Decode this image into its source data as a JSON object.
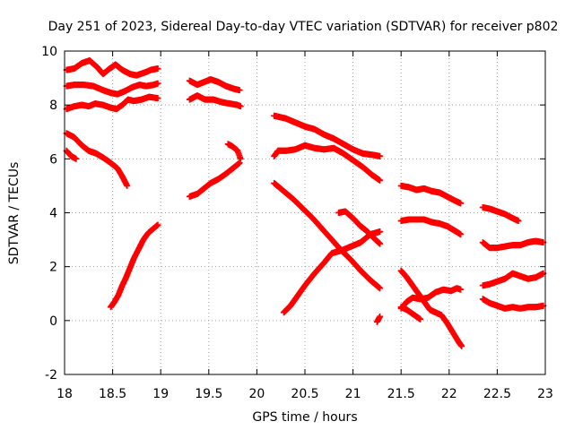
{
  "chart_data": {
    "type": "scatter",
    "title": "Day 251 of 2023, Sidereal Day-to-day VTEC variation (SDTVAR) for receiver p802",
    "xlabel": "GPS time / hours",
    "ylabel": "SDTVAR / TECUs",
    "xlim": [
      18,
      23
    ],
    "ylim": [
      -2,
      10
    ],
    "xticks": [
      18,
      18.5,
      19,
      19.5,
      20,
      20.5,
      21,
      21.5,
      22,
      22.5,
      23
    ],
    "xtick_labels": [
      "18",
      "18.5",
      "19",
      "19.5",
      "20",
      "20.5",
      "21",
      "21.5",
      "22",
      "22.5",
      "23"
    ],
    "yticks": [
      -2,
      0,
      2,
      4,
      6,
      8,
      10
    ],
    "ytick_labels": [
      "-2",
      "0",
      "2",
      "4",
      "6",
      "8",
      "10"
    ],
    "grid": true,
    "marker": "+",
    "series_color": "#ff0000",
    "series": [
      {
        "name": "arc-1",
        "points": [
          [
            18.02,
            9.3
          ],
          [
            18.1,
            9.35
          ],
          [
            18.18,
            9.55
          ],
          [
            18.26,
            9.65
          ],
          [
            18.34,
            9.4
          ],
          [
            18.4,
            9.15
          ],
          [
            18.47,
            9.35
          ],
          [
            18.53,
            9.5
          ],
          [
            18.6,
            9.3
          ],
          [
            18.68,
            9.15
          ],
          [
            18.75,
            9.1
          ],
          [
            18.83,
            9.2
          ],
          [
            18.9,
            9.3
          ],
          [
            18.97,
            9.35
          ]
        ]
      },
      {
        "name": "arc-2",
        "points": [
          [
            18.02,
            8.7
          ],
          [
            18.1,
            8.75
          ],
          [
            18.2,
            8.75
          ],
          [
            18.3,
            8.7
          ],
          [
            18.4,
            8.55
          ],
          [
            18.48,
            8.45
          ],
          [
            18.55,
            8.4
          ],
          [
            18.62,
            8.5
          ],
          [
            18.7,
            8.65
          ],
          [
            18.78,
            8.75
          ],
          [
            18.85,
            8.7
          ],
          [
            18.93,
            8.75
          ],
          [
            18.97,
            8.8
          ]
        ]
      },
      {
        "name": "arc-3",
        "points": [
          [
            18.02,
            7.85
          ],
          [
            18.1,
            7.95
          ],
          [
            18.18,
            8.0
          ],
          [
            18.25,
            7.95
          ],
          [
            18.32,
            8.05
          ],
          [
            18.4,
            8.0
          ],
          [
            18.48,
            7.9
          ],
          [
            18.54,
            7.85
          ],
          [
            18.6,
            8.0
          ],
          [
            18.66,
            8.2
          ],
          [
            18.72,
            8.15
          ],
          [
            18.8,
            8.2
          ],
          [
            18.88,
            8.3
          ],
          [
            18.97,
            8.25
          ]
        ]
      },
      {
        "name": "arc-4",
        "points": [
          [
            18.02,
            6.95
          ],
          [
            18.1,
            6.8
          ],
          [
            18.18,
            6.5
          ],
          [
            18.25,
            6.3
          ],
          [
            18.33,
            6.2
          ],
          [
            18.4,
            6.05
          ],
          [
            18.48,
            5.85
          ],
          [
            18.55,
            5.65
          ],
          [
            18.6,
            5.35
          ],
          [
            18.65,
            5.0
          ]
        ]
      },
      {
        "name": "arc-5",
        "points": [
          [
            18.02,
            6.3
          ],
          [
            18.07,
            6.1
          ],
          [
            18.12,
            6.0
          ]
        ]
      },
      {
        "name": "arc-6",
        "points": [
          [
            18.48,
            0.5
          ],
          [
            18.52,
            0.7
          ],
          [
            18.56,
            0.95
          ],
          [
            18.6,
            1.3
          ],
          [
            18.64,
            1.6
          ],
          [
            18.68,
            1.95
          ],
          [
            18.72,
            2.3
          ],
          [
            18.77,
            2.65
          ],
          [
            18.82,
            3.0
          ],
          [
            18.87,
            3.25
          ],
          [
            18.92,
            3.4
          ],
          [
            18.97,
            3.55
          ]
        ]
      },
      {
        "name": "arc-7",
        "points": [
          [
            19.3,
            8.9
          ],
          [
            19.38,
            8.75
          ],
          [
            19.45,
            8.85
          ],
          [
            19.52,
            8.95
          ],
          [
            19.6,
            8.85
          ],
          [
            19.68,
            8.7
          ],
          [
            19.76,
            8.6
          ],
          [
            19.82,
            8.55
          ]
        ]
      },
      {
        "name": "arc-8",
        "points": [
          [
            19.3,
            8.2
          ],
          [
            19.38,
            8.35
          ],
          [
            19.46,
            8.2
          ],
          [
            19.55,
            8.2
          ],
          [
            19.64,
            8.1
          ],
          [
            19.72,
            8.05
          ],
          [
            19.8,
            8.0
          ],
          [
            19.83,
            7.95
          ]
        ]
      },
      {
        "name": "arc-9",
        "points": [
          [
            19.3,
            4.6
          ],
          [
            19.38,
            4.7
          ],
          [
            19.45,
            4.9
          ],
          [
            19.52,
            5.1
          ],
          [
            19.6,
            5.25
          ],
          [
            19.68,
            5.45
          ],
          [
            19.75,
            5.65
          ],
          [
            19.82,
            5.85
          ]
        ]
      },
      {
        "name": "arc-10",
        "points": [
          [
            19.7,
            6.55
          ],
          [
            19.75,
            6.45
          ],
          [
            19.8,
            6.3
          ],
          [
            19.83,
            6.0
          ]
        ]
      },
      {
        "name": "arc-11",
        "points": [
          [
            20.18,
            7.6
          ],
          [
            20.3,
            7.5
          ],
          [
            20.4,
            7.35
          ],
          [
            20.5,
            7.2
          ],
          [
            20.6,
            7.1
          ],
          [
            20.7,
            6.9
          ],
          [
            20.8,
            6.75
          ],
          [
            20.9,
            6.55
          ],
          [
            21.0,
            6.35
          ],
          [
            21.1,
            6.2
          ],
          [
            21.2,
            6.15
          ],
          [
            21.28,
            6.1
          ]
        ]
      },
      {
        "name": "arc-12",
        "points": [
          [
            20.18,
            6.1
          ],
          [
            20.22,
            6.3
          ],
          [
            20.3,
            6.3
          ],
          [
            20.4,
            6.35
          ],
          [
            20.5,
            6.5
          ],
          [
            20.6,
            6.4
          ],
          [
            20.7,
            6.35
          ],
          [
            20.8,
            6.4
          ],
          [
            20.9,
            6.2
          ],
          [
            21.0,
            5.95
          ],
          [
            21.1,
            5.7
          ],
          [
            21.2,
            5.4
          ],
          [
            21.28,
            5.2
          ]
        ]
      },
      {
        "name": "arc-13",
        "points": [
          [
            20.18,
            5.1
          ],
          [
            20.28,
            4.8
          ],
          [
            20.38,
            4.5
          ],
          [
            20.48,
            4.15
          ],
          [
            20.58,
            3.8
          ],
          [
            20.68,
            3.4
          ],
          [
            20.78,
            3.0
          ],
          [
            20.88,
            2.6
          ],
          [
            20.98,
            2.25
          ],
          [
            21.08,
            1.85
          ],
          [
            21.18,
            1.5
          ],
          [
            21.28,
            1.2
          ]
        ]
      },
      {
        "name": "arc-14",
        "points": [
          [
            20.28,
            0.3
          ],
          [
            20.35,
            0.55
          ],
          [
            20.42,
            0.9
          ],
          [
            20.5,
            1.3
          ],
          [
            20.6,
            1.75
          ],
          [
            20.7,
            2.15
          ],
          [
            20.78,
            2.5
          ],
          [
            20.88,
            2.6
          ],
          [
            20.98,
            2.75
          ],
          [
            21.08,
            2.9
          ],
          [
            21.18,
            3.2
          ],
          [
            21.28,
            3.3
          ]
        ]
      },
      {
        "name": "arc-15",
        "points": [
          [
            20.85,
            4.0
          ],
          [
            20.92,
            4.05
          ],
          [
            21.0,
            3.8
          ],
          [
            21.08,
            3.5
          ],
          [
            21.15,
            3.3
          ],
          [
            21.22,
            3.05
          ],
          [
            21.28,
            2.85
          ]
        ]
      },
      {
        "name": "arc-16",
        "points": [
          [
            21.25,
            -0.05
          ],
          [
            21.28,
            0.15
          ]
        ]
      },
      {
        "name": "arc-17",
        "points": [
          [
            21.5,
            5.0
          ],
          [
            21.58,
            4.95
          ],
          [
            21.66,
            4.85
          ],
          [
            21.74,
            4.9
          ],
          [
            21.82,
            4.8
          ],
          [
            21.9,
            4.75
          ],
          [
            21.98,
            4.6
          ],
          [
            22.06,
            4.45
          ],
          [
            22.12,
            4.35
          ]
        ]
      },
      {
        "name": "arc-18",
        "points": [
          [
            21.5,
            3.7
          ],
          [
            21.58,
            3.75
          ],
          [
            21.66,
            3.75
          ],
          [
            21.74,
            3.75
          ],
          [
            21.82,
            3.65
          ],
          [
            21.9,
            3.6
          ],
          [
            21.98,
            3.5
          ],
          [
            22.05,
            3.35
          ],
          [
            22.12,
            3.2
          ]
        ]
      },
      {
        "name": "arc-19",
        "points": [
          [
            21.5,
            1.85
          ],
          [
            21.56,
            1.6
          ],
          [
            21.62,
            1.3
          ],
          [
            21.68,
            1.0
          ],
          [
            21.74,
            0.7
          ],
          [
            21.8,
            0.4
          ],
          [
            21.86,
            0.3
          ],
          [
            21.92,
            0.2
          ],
          [
            21.98,
            -0.1
          ],
          [
            22.04,
            -0.45
          ],
          [
            22.1,
            -0.8
          ],
          [
            22.13,
            -0.95
          ]
        ]
      },
      {
        "name": "arc-20",
        "points": [
          [
            21.5,
            0.45
          ],
          [
            21.56,
            0.7
          ],
          [
            21.62,
            0.85
          ],
          [
            21.7,
            0.8
          ],
          [
            21.78,
            0.85
          ],
          [
            21.86,
            1.05
          ],
          [
            21.94,
            1.15
          ],
          [
            22.02,
            1.1
          ],
          [
            22.08,
            1.2
          ],
          [
            22.12,
            1.15
          ]
        ]
      },
      {
        "name": "arc-21",
        "points": [
          [
            21.5,
            0.5
          ],
          [
            21.56,
            0.4
          ],
          [
            21.62,
            0.25
          ],
          [
            21.7,
            0.05
          ]
        ]
      },
      {
        "name": "arc-22",
        "points": [
          [
            22.35,
            4.2
          ],
          [
            22.42,
            4.15
          ],
          [
            22.5,
            4.05
          ],
          [
            22.58,
            3.95
          ],
          [
            22.66,
            3.8
          ],
          [
            22.72,
            3.7
          ]
        ]
      },
      {
        "name": "arc-23",
        "points": [
          [
            22.35,
            2.9
          ],
          [
            22.42,
            2.7
          ],
          [
            22.5,
            2.7
          ],
          [
            22.58,
            2.75
          ],
          [
            22.66,
            2.8
          ],
          [
            22.74,
            2.8
          ],
          [
            22.82,
            2.9
          ],
          [
            22.9,
            2.95
          ],
          [
            22.98,
            2.9
          ]
        ]
      },
      {
        "name": "arc-24",
        "points": [
          [
            22.35,
            1.3
          ],
          [
            22.42,
            1.35
          ],
          [
            22.5,
            1.45
          ],
          [
            22.58,
            1.55
          ],
          [
            22.66,
            1.75
          ],
          [
            22.74,
            1.65
          ],
          [
            22.82,
            1.55
          ],
          [
            22.9,
            1.6
          ],
          [
            22.98,
            1.75
          ]
        ]
      },
      {
        "name": "arc-25",
        "points": [
          [
            22.35,
            0.8
          ],
          [
            22.42,
            0.65
          ],
          [
            22.5,
            0.55
          ],
          [
            22.58,
            0.45
          ],
          [
            22.66,
            0.5
          ],
          [
            22.74,
            0.45
          ],
          [
            22.82,
            0.5
          ],
          [
            22.9,
            0.5
          ],
          [
            22.98,
            0.55
          ]
        ]
      }
    ]
  }
}
